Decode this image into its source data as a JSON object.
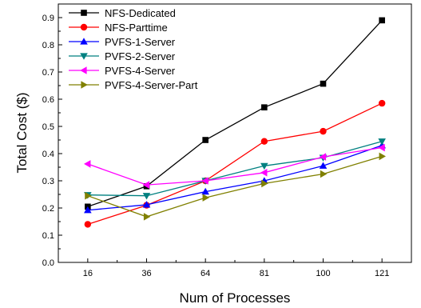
{
  "chart_data": {
    "type": "line",
    "xlabel": "Num of Processes",
    "ylabel": "Total Cost ($)",
    "categories": [
      "16",
      "36",
      "64",
      "81",
      "100",
      "121"
    ],
    "ylim": [
      0,
      0.95
    ],
    "yticks": [
      "0.0",
      "0.1",
      "0.2",
      "0.3",
      "0.4",
      "0.5",
      "0.6",
      "0.7",
      "0.8",
      "0.9"
    ],
    "legend_position": "top-left",
    "grid": false,
    "series": [
      {
        "name": "NFS-Dedicated",
        "color": "#000000",
        "marker": "square",
        "values": [
          0.205,
          0.28,
          0.45,
          0.57,
          0.657,
          0.89
        ]
      },
      {
        "name": "NFS-Parttime",
        "color": "#ff0000",
        "marker": "circle",
        "values": [
          0.14,
          0.21,
          0.3,
          0.445,
          0.482,
          0.585
        ]
      },
      {
        "name": "PVFS-1-Server",
        "color": "#0000ff",
        "marker": "triangle-up",
        "values": [
          0.192,
          0.212,
          0.26,
          0.3,
          0.355,
          0.43
        ]
      },
      {
        "name": "PVFS-2-Server",
        "color": "#008080",
        "marker": "triangle-down",
        "values": [
          0.248,
          0.245,
          0.3,
          0.355,
          0.385,
          0.445
        ]
      },
      {
        "name": "PVFS-4-Server",
        "color": "#ff00ff",
        "marker": "triangle-left",
        "values": [
          0.362,
          0.285,
          0.3,
          0.33,
          0.388,
          0.422
        ]
      },
      {
        "name": "PVFS-4-Server-Part",
        "color": "#808000",
        "marker": "triangle-right",
        "values": [
          0.245,
          0.168,
          0.238,
          0.29,
          0.325,
          0.39
        ]
      }
    ]
  }
}
